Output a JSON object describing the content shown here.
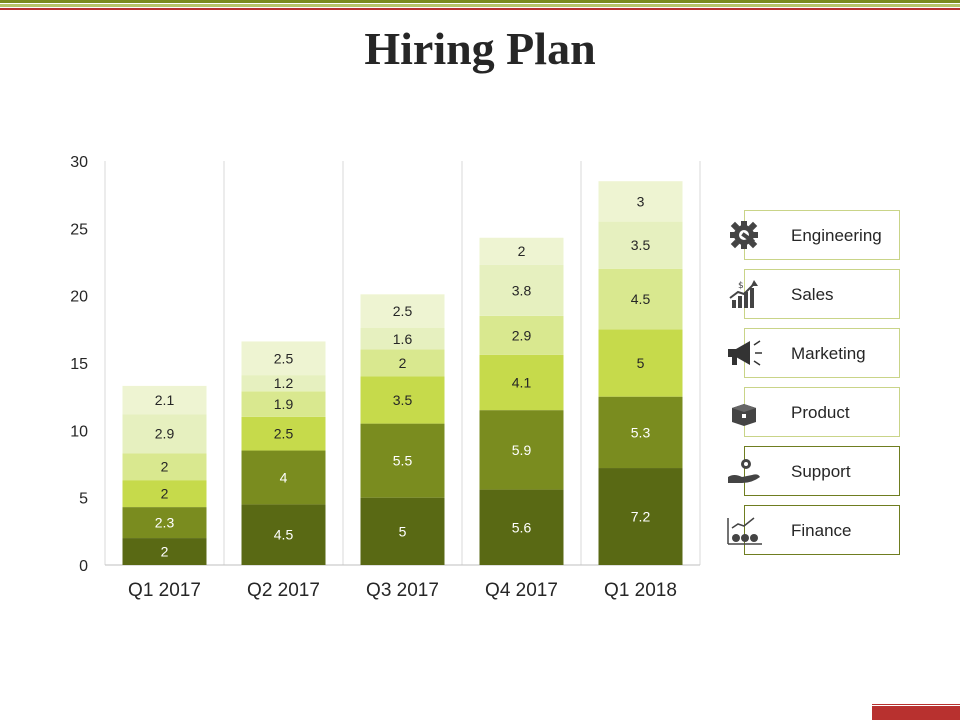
{
  "title": "Hiring Plan",
  "colors": {
    "series": [
      "#596914",
      "#7a8c1f",
      "#c6da4b",
      "#d9e88f",
      "#e6f0bf",
      "#eef4d2"
    ],
    "accent_red": "#b8312f",
    "accent_green": "#7a8a1e"
  },
  "legend": [
    {
      "label": "Engineering",
      "icon": "gear-wrench-icon"
    },
    {
      "label": "Sales",
      "icon": "growth-chart-icon"
    },
    {
      "label": "Marketing",
      "icon": "megaphone-icon"
    },
    {
      "label": "Product",
      "icon": "box-icon"
    },
    {
      "label": "Support",
      "icon": "hand-gear-icon"
    },
    {
      "label": "Finance",
      "icon": "money-bags-chart-icon"
    }
  ],
  "chart_data": {
    "type": "bar",
    "stacked": true,
    "categories": [
      "Q1 2017",
      "Q2 2017",
      "Q3 2017",
      "Q4 2017",
      "Q1 2018"
    ],
    "series": [
      {
        "values": [
          2,
          4.5,
          5,
          5.6,
          7.2
        ]
      },
      {
        "values": [
          2.3,
          4,
          5.5,
          5.9,
          5.3
        ]
      },
      {
        "values": [
          2,
          2.5,
          3.5,
          4.1,
          5
        ]
      },
      {
        "values": [
          2,
          1.9,
          2,
          2.9,
          4.5
        ]
      },
      {
        "values": [
          2.9,
          1.2,
          1.6,
          3.8,
          3.5
        ]
      },
      {
        "values": [
          2.1,
          2.5,
          2.5,
          2,
          3
        ]
      }
    ],
    "ylim": [
      0,
      30
    ],
    "yticks": [
      0,
      5,
      10,
      15,
      20,
      25,
      30
    ],
    "grid": "vertical separators",
    "legend_position": "right"
  }
}
